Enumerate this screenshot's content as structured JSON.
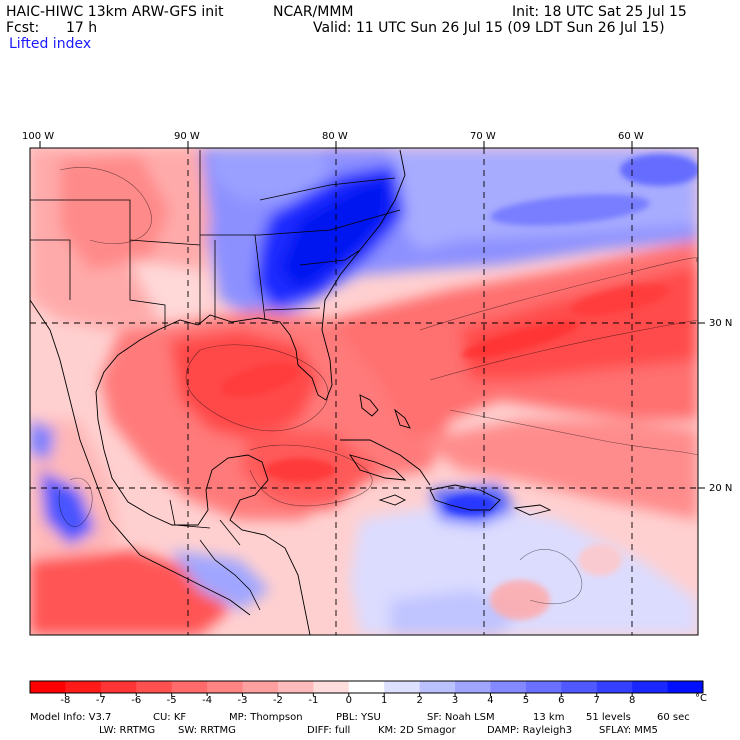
{
  "header": {
    "model_title": "HAIC-HIWC 13km ARW-GFS init",
    "agency": "NCAR/MMM",
    "init": "Init: 18 UTC Sat 25 Jul 15",
    "fcst_label": "Fcst:",
    "fcst_value": "17 h",
    "valid": "Valid: 11 UTC Sun 26 Jul 15 (09 LDT Sun 26 Jul 15)",
    "field": "Lifted index"
  },
  "map": {
    "lon_labels": [
      "100 W",
      "90 W",
      "80 W",
      "70 W",
      "60 W"
    ],
    "lat_labels": [
      "30 N",
      "20 N"
    ]
  },
  "colorbar": {
    "ticks": [
      "-8",
      "-7",
      "-6",
      "-5",
      "-4",
      "-3",
      "-2",
      "-1",
      "0",
      "1",
      "2",
      "3",
      "4",
      "5",
      "6",
      "7",
      "8"
    ],
    "unit": "°C",
    "colors": [
      "#ff0000",
      "#ff1a1a",
      "#ff3535",
      "#ff5050",
      "#ff6a6a",
      "#ff8585",
      "#ffa0a0",
      "#ffbbbb",
      "#ffdddd",
      "#ffffff",
      "#dde0ff",
      "#bbc0ff",
      "#a0a6ff",
      "#8589ff",
      "#6a70ff",
      "#5058ff",
      "#3540ff",
      "#1a28ff",
      "#0010ff"
    ]
  },
  "footer": {
    "line1": [
      "Model Info: V3.7",
      "CU: KF",
      "MP: Thompson",
      "PBL: YSU",
      "SF: Noah LSM",
      "13 km",
      "51 levels",
      "60 sec"
    ],
    "line2": [
      "LW: RRTMG",
      "SW: RRTMG",
      "DIFF: full",
      "KM: 2D Smagor",
      "DAMP: Rayleigh3",
      "SFLAY: MM5"
    ]
  }
}
